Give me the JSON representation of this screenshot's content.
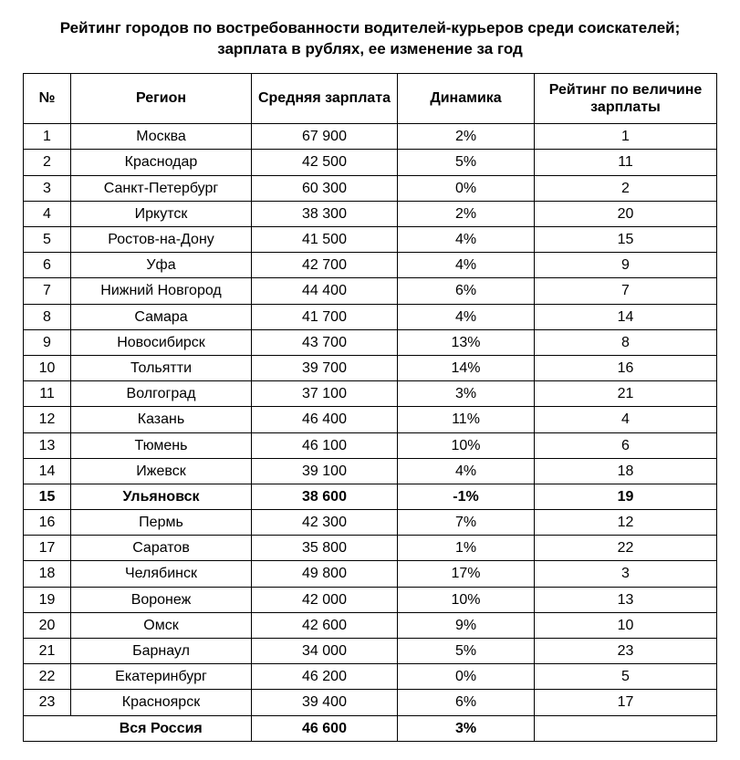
{
  "title_line1": "Рейтинг городов по востребованности водителей-курьеров среди соискателей;",
  "title_line2": "зарплата в рублях, ее изменение за год",
  "columns": {
    "num": "№",
    "region": "Регион",
    "salary": "Средняя зарплата",
    "dynamic": "Динамика",
    "rank": "Рейтинг по величине зарплаты"
  },
  "rows": [
    {
      "num": "1",
      "region": "Москва",
      "salary": "67 900",
      "dynamic": "2%",
      "rank": "1",
      "bold": false
    },
    {
      "num": "2",
      "region": "Краснодар",
      "salary": "42 500",
      "dynamic": "5%",
      "rank": "11",
      "bold": false
    },
    {
      "num": "3",
      "region": "Санкт-Петербург",
      "salary": "60 300",
      "dynamic": "0%",
      "rank": "2",
      "bold": false
    },
    {
      "num": "4",
      "region": "Иркутск",
      "salary": "38 300",
      "dynamic": "2%",
      "rank": "20",
      "bold": false
    },
    {
      "num": "5",
      "region": "Ростов-на-Дону",
      "salary": "41 500",
      "dynamic": "4%",
      "rank": "15",
      "bold": false
    },
    {
      "num": "6",
      "region": "Уфа",
      "salary": "42 700",
      "dynamic": "4%",
      "rank": "9",
      "bold": false
    },
    {
      "num": "7",
      "region": "Нижний Новгород",
      "salary": "44 400",
      "dynamic": "6%",
      "rank": "7",
      "bold": false
    },
    {
      "num": "8",
      "region": "Самара",
      "salary": "41 700",
      "dynamic": "4%",
      "rank": "14",
      "bold": false
    },
    {
      "num": "9",
      "region": "Новосибирск",
      "salary": "43 700",
      "dynamic": "13%",
      "rank": "8",
      "bold": false
    },
    {
      "num": "10",
      "region": "Тольятти",
      "salary": "39 700",
      "dynamic": "14%",
      "rank": "16",
      "bold": false
    },
    {
      "num": "11",
      "region": "Волгоград",
      "salary": "37 100",
      "dynamic": "3%",
      "rank": "21",
      "bold": false
    },
    {
      "num": "12",
      "region": "Казань",
      "salary": "46 400",
      "dynamic": "11%",
      "rank": "4",
      "bold": false
    },
    {
      "num": "13",
      "region": "Тюмень",
      "salary": "46 100",
      "dynamic": "10%",
      "rank": "6",
      "bold": false
    },
    {
      "num": "14",
      "region": "Ижевск",
      "salary": "39 100",
      "dynamic": "4%",
      "rank": "18",
      "bold": false
    },
    {
      "num": "15",
      "region": "Ульяновск",
      "salary": "38 600",
      "dynamic": "-1%",
      "rank": "19",
      "bold": true
    },
    {
      "num": "16",
      "region": "Пермь",
      "salary": "42 300",
      "dynamic": "7%",
      "rank": "12",
      "bold": false
    },
    {
      "num": "17",
      "region": "Саратов",
      "salary": "35 800",
      "dynamic": "1%",
      "rank": "22",
      "bold": false
    },
    {
      "num": "18",
      "region": "Челябинск",
      "salary": "49 800",
      "dynamic": "17%",
      "rank": "3",
      "bold": false
    },
    {
      "num": "19",
      "region": "Воронеж",
      "salary": "42 000",
      "dynamic": "10%",
      "rank": "13",
      "bold": false
    },
    {
      "num": "20",
      "region": "Омск",
      "salary": "42 600",
      "dynamic": "9%",
      "rank": "10",
      "bold": false
    },
    {
      "num": "21",
      "region": "Барнаул",
      "salary": "34 000",
      "dynamic": "5%",
      "rank": "23",
      "bold": false
    },
    {
      "num": "22",
      "region": "Екатеринбург",
      "salary": "46 200",
      "dynamic": "0%",
      "rank": "5",
      "bold": false
    },
    {
      "num": "23",
      "region": "Красноярск",
      "salary": "39 400",
      "dynamic": "6%",
      "rank": "17",
      "bold": false
    }
  ],
  "total": {
    "num": "",
    "region": "Вся Россия",
    "salary": "46 600",
    "dynamic": "3%",
    "rank": ""
  },
  "style": {
    "background": "#ffffff",
    "border_color": "#000000",
    "text_color": "#000000",
    "header_fontsize": 16,
    "cell_fontsize": 16,
    "title_fontsize": 17
  }
}
